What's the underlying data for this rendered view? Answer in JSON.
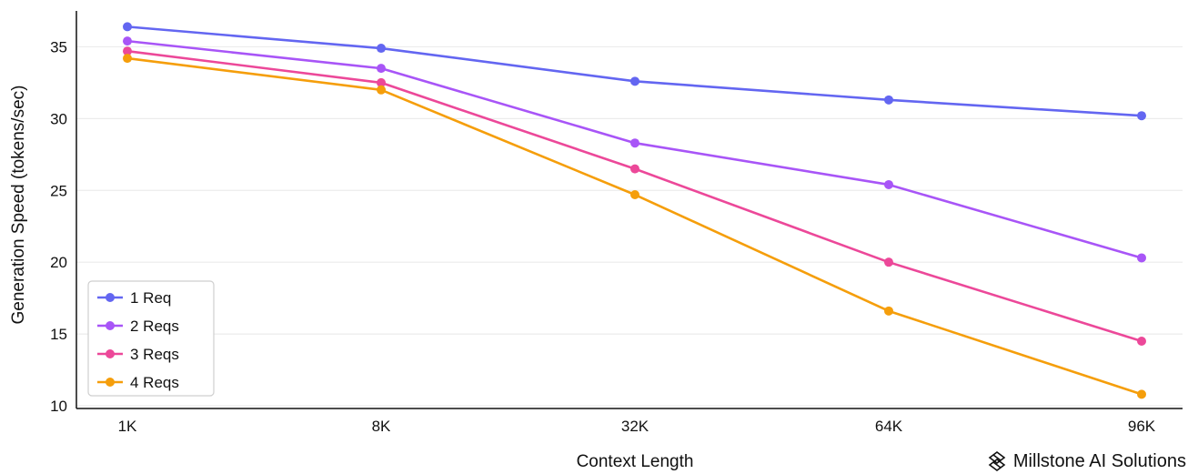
{
  "chart_data": {
    "type": "line",
    "title": "",
    "xlabel": "Context Length",
    "ylabel": "Generation Speed (tokens/sec)",
    "categories": [
      "1K",
      "8K",
      "32K",
      "64K",
      "96K"
    ],
    "ylim": [
      10,
      37.5
    ],
    "yticks": [
      10,
      15,
      20,
      25,
      30,
      35
    ],
    "grid": "horizontal",
    "legend_position": "bottom-left",
    "series": [
      {
        "name": "1 Req",
        "color": "#6366f1",
        "values": [
          36.4,
          34.9,
          32.6,
          31.3,
          30.2
        ]
      },
      {
        "name": "2 Reqs",
        "color": "#a855f7",
        "values": [
          35.4,
          33.5,
          28.3,
          25.4,
          20.3
        ]
      },
      {
        "name": "3 Reqs",
        "color": "#ec4899",
        "values": [
          34.7,
          32.5,
          26.5,
          20.0,
          14.5
        ]
      },
      {
        "name": "4 Reqs",
        "color": "#f59e0b",
        "values": [
          34.2,
          32.0,
          24.7,
          16.6,
          10.8
        ]
      }
    ]
  },
  "branding": {
    "text": "Millstone AI Solutions",
    "icon": "woven-knot-logo-icon"
  }
}
